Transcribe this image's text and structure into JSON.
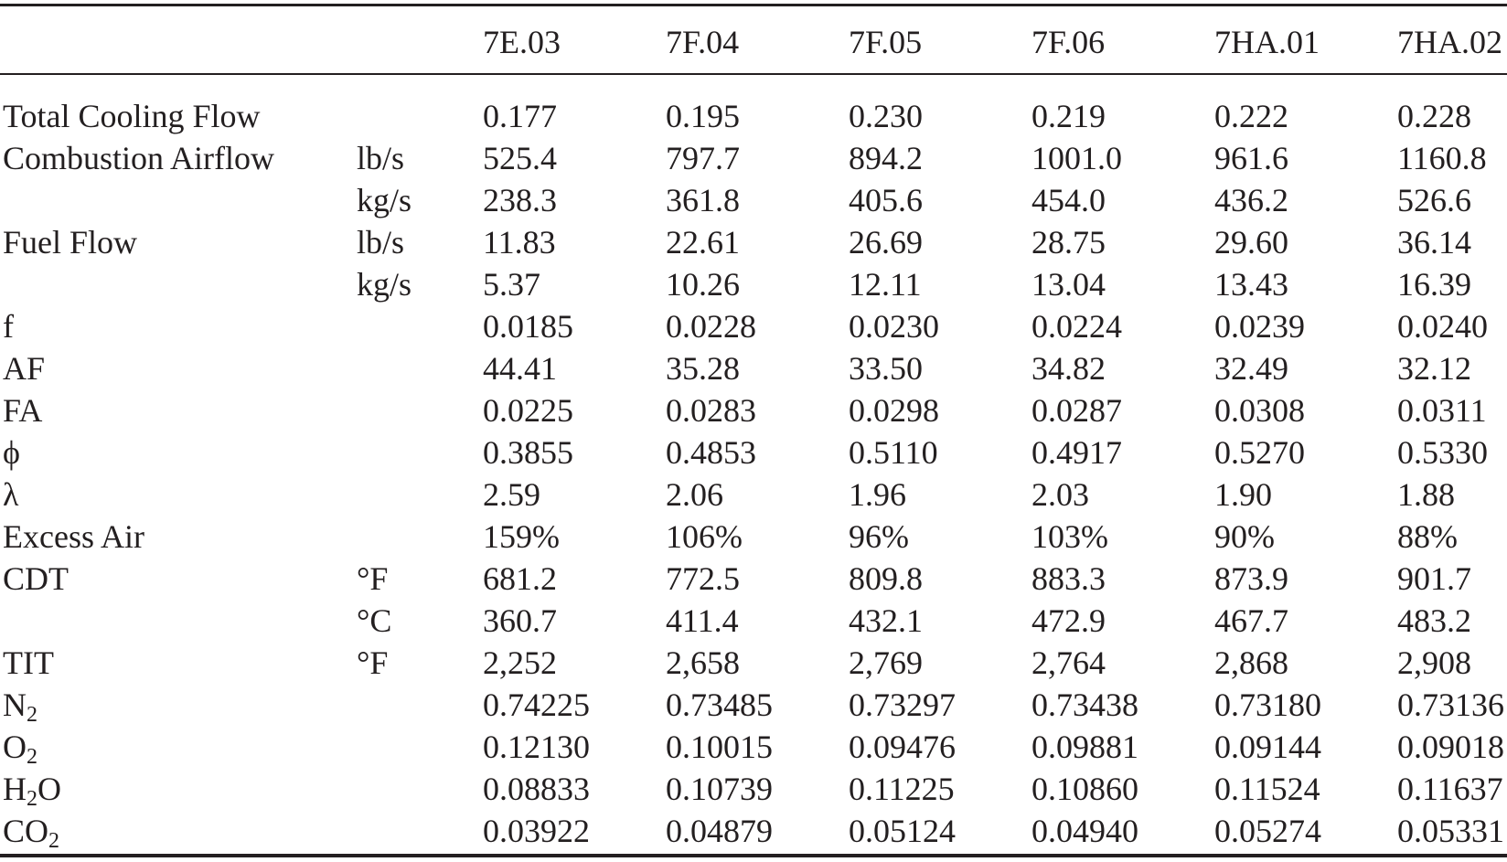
{
  "table": {
    "columns": [
      "7E.03",
      "7F.04",
      "7F.05",
      "7F.06",
      "7HA.01",
      "7HA.02"
    ],
    "rows": [
      {
        "label": "Total Cooling Flow",
        "unit": "",
        "values": [
          "0.177",
          "0.195",
          "0.230",
          "0.219",
          "0.222",
          "0.228"
        ]
      },
      {
        "label": "Combustion Airflow",
        "unit": "lb/s",
        "values": [
          "525.4",
          "797.7",
          "894.2",
          "1001.0",
          "961.6",
          "1160.8"
        ]
      },
      {
        "label": "",
        "unit": "kg/s",
        "values": [
          "238.3",
          "361.8",
          "405.6",
          "454.0",
          "436.2",
          "526.6"
        ]
      },
      {
        "label": "Fuel Flow",
        "unit": "lb/s",
        "values": [
          "11.83",
          "22.61",
          "26.69",
          "28.75",
          "29.60",
          "36.14"
        ]
      },
      {
        "label": "",
        "unit": "kg/s",
        "values": [
          "5.37",
          "10.26",
          "12.11",
          "13.04",
          "13.43",
          "16.39"
        ]
      },
      {
        "label": "f",
        "unit": "",
        "values": [
          "0.0185",
          "0.0228",
          "0.0230",
          "0.0224",
          "0.0239",
          "0.0240"
        ]
      },
      {
        "label": "AF",
        "unit": "",
        "values": [
          "44.41",
          "35.28",
          "33.50",
          "34.82",
          "32.49",
          "32.12"
        ]
      },
      {
        "label": "FA",
        "unit": "",
        "values": [
          "0.0225",
          "0.0283",
          "0.0298",
          "0.0287",
          "0.0308",
          "0.0311"
        ]
      },
      {
        "label": "ϕ",
        "unit": "",
        "values": [
          "0.3855",
          "0.4853",
          "0.5110",
          "0.4917",
          "0.5270",
          "0.5330"
        ]
      },
      {
        "label": "λ",
        "unit": "",
        "values": [
          "2.59",
          "2.06",
          "1.96",
          "2.03",
          "1.90",
          "1.88"
        ]
      },
      {
        "label": "Excess Air",
        "unit": "",
        "values": [
          "159%",
          "106%",
          "96%",
          "103%",
          "90%",
          "88%"
        ]
      },
      {
        "label": "CDT",
        "unit": "°F",
        "values": [
          "681.2",
          "772.5",
          "809.8",
          "883.3",
          "873.9",
          "901.7"
        ]
      },
      {
        "label": "",
        "unit": "°C",
        "values": [
          "360.7",
          "411.4",
          "432.1",
          "472.9",
          "467.7",
          "483.2"
        ]
      },
      {
        "label": "TIT",
        "unit": "°F",
        "values": [
          "2,252",
          "2,658",
          "2,769",
          "2,764",
          "2,868",
          "2,908"
        ]
      },
      {
        "label": "N",
        "label_sub": "2",
        "unit": "",
        "values": [
          "0.74225",
          "0.73485",
          "0.73297",
          "0.73438",
          "0.73180",
          "0.73136"
        ]
      },
      {
        "label": "O",
        "label_sub": "2",
        "unit": "",
        "values": [
          "0.12130",
          "0.10015",
          "0.09476",
          "0.09881",
          "0.09144",
          "0.09018"
        ]
      },
      {
        "label": "H",
        "label_sub": "2",
        "label_after": "O",
        "unit": "",
        "values": [
          "0.08833",
          "0.10739",
          "0.11225",
          "0.10860",
          "0.11524",
          "0.11637"
        ]
      },
      {
        "label": "CO",
        "label_sub": "2",
        "unit": "",
        "values": [
          "0.03922",
          "0.04879",
          "0.05124",
          "0.04940",
          "0.05274",
          "0.05331"
        ]
      }
    ]
  }
}
